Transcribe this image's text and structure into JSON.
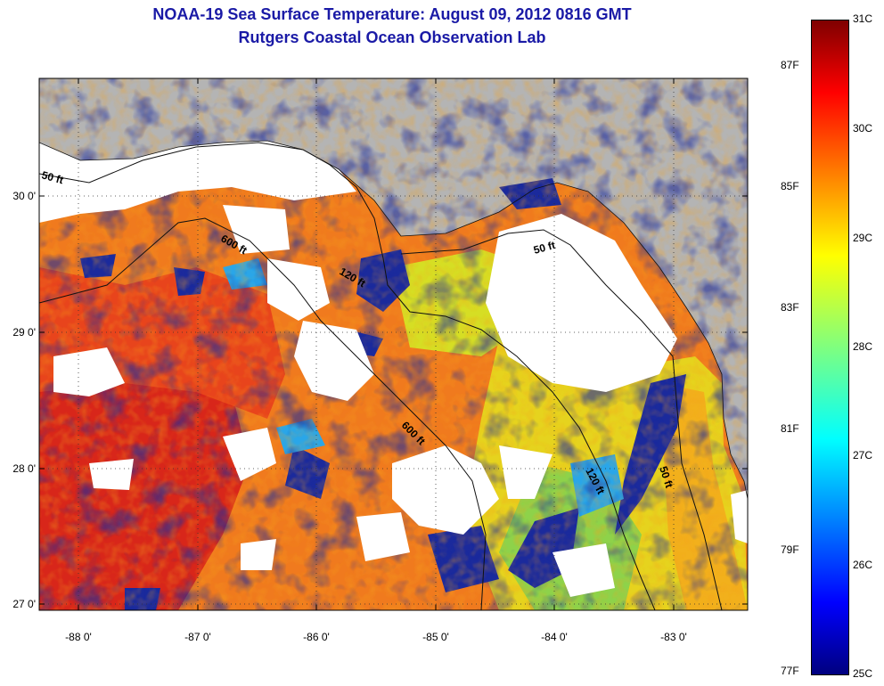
{
  "title": "NOAA-19 Sea Surface Temperature:  August 09, 2012 0816 GMT",
  "subtitle": "Rutgers Coastal Ocean Observation Lab",
  "map": {
    "lon_ticks": [
      "-88 0'",
      "-87 0'",
      "-86 0'",
      "-85 0'",
      "-84 0'",
      "-83 0'"
    ],
    "lat_ticks": [
      "30 0'",
      "29 0'",
      "28 0'",
      "27 0'"
    ],
    "contour_labels": [
      "50 ft",
      "600 ft",
      "120 ft",
      "50 ft",
      "600 ft",
      "120 ft",
      "50 ft"
    ]
  },
  "colorbar": {
    "celsius": [
      "31C",
      "30C",
      "29C",
      "28C",
      "27C",
      "26C",
      "25C"
    ],
    "fahrenheit": [
      "87F",
      "85F",
      "83F",
      "81F",
      "79F",
      "77F"
    ],
    "min_c": 25,
    "max_c": 31,
    "colormap": "jet"
  },
  "colors": {
    "land": "#b4b4b4",
    "cloud": "#ffffff",
    "title": "#1a1aa6"
  }
}
